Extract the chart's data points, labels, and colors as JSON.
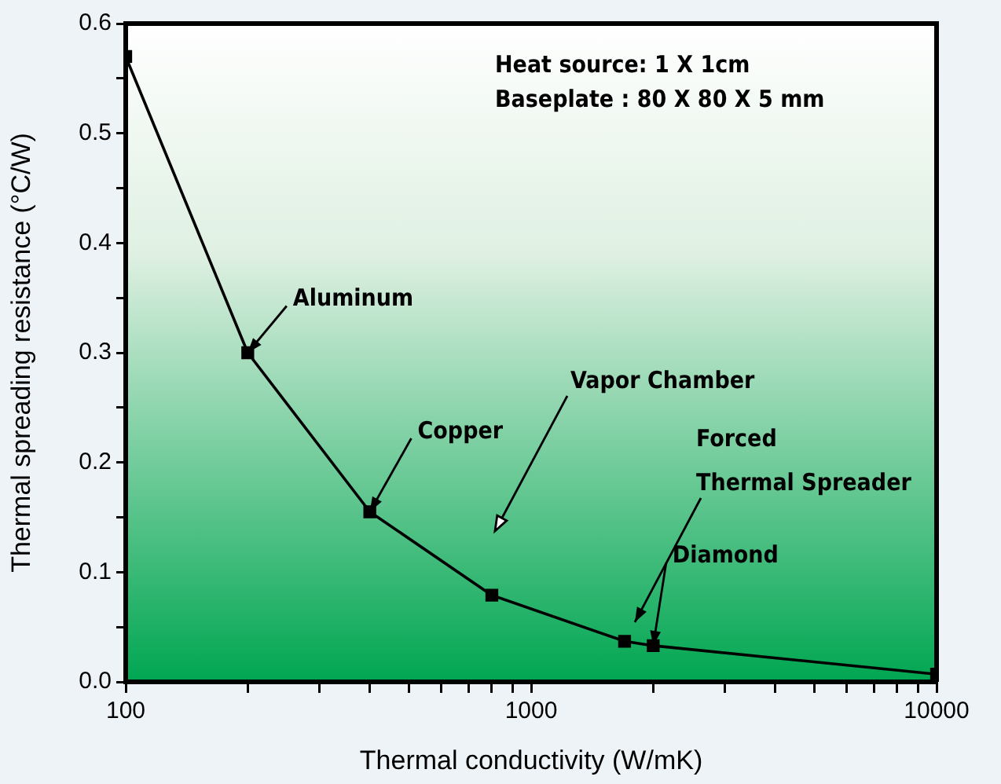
{
  "chart_data": {
    "type": "line",
    "xlabel": "Thermal conductivity (W/mK)",
    "ylabel": "Thermal spreading resistance (°C/W)",
    "log": "x",
    "x": [
      100,
      200,
      400,
      800,
      1700,
      2000,
      10000
    ],
    "series": [
      {
        "color": "#000000",
        "values": [
          0.57,
          0.3,
          0.155,
          0.079,
          0.037,
          0.033,
          0.007
        ]
      }
    ],
    "xlim": [
      100,
      10000
    ],
    "xticks": [
      100,
      {
        "value": 200,
        "label": null
      },
      {
        "value": 300,
        "label": null
      },
      {
        "value": 400,
        "label": null
      },
      {
        "value": 500,
        "label": null
      },
      {
        "value": 600,
        "label": null
      },
      {
        "value": 700,
        "label": null
      },
      {
        "value": 800,
        "label": null
      },
      {
        "value": 900,
        "label": null
      },
      1000,
      {
        "value": 2000,
        "label": null
      },
      {
        "value": 3000,
        "label": null
      },
      {
        "value": 4000,
        "label": null
      },
      {
        "value": 5000,
        "label": null
      },
      {
        "value": 6000,
        "label": null
      },
      {
        "value": 7000,
        "label": null
      },
      {
        "value": 8000,
        "label": null
      },
      {
        "value": 9000,
        "label": null
      },
      10000
    ],
    "ylim": [
      0,
      0.6
    ],
    "yticks": [
      {
        "value": 0,
        "label": "0.0"
      },
      {
        "value": 0.05,
        "label": null
      },
      0.1,
      {
        "value": 0.15,
        "label": null
      },
      0.2,
      {
        "value": 0.25,
        "label": null
      },
      0.3,
      {
        "value": 0.35,
        "label": null
      },
      0.4,
      {
        "value": 0.45,
        "label": null
      },
      0.5,
      {
        "value": 0.55,
        "label": null
      },
      0.6
    ],
    "grid": false,
    "legend": false,
    "marker": "square",
    "line_style": "solid",
    "annotations": [
      "Heat source: 1 X 1cm",
      "Baseplate : 80 X 80 X 5 mm",
      {
        "text": "Aluminum",
        "x": 200,
        "y": 0.3
      },
      {
        "text": "Copper",
        "x": 400,
        "y": 0.155
      },
      "Vapor Chamber",
      "Forced Thermal Spreader",
      {
        "text": "Diamond",
        "x": 2000,
        "y": 0.033
      }
    ]
  }
}
